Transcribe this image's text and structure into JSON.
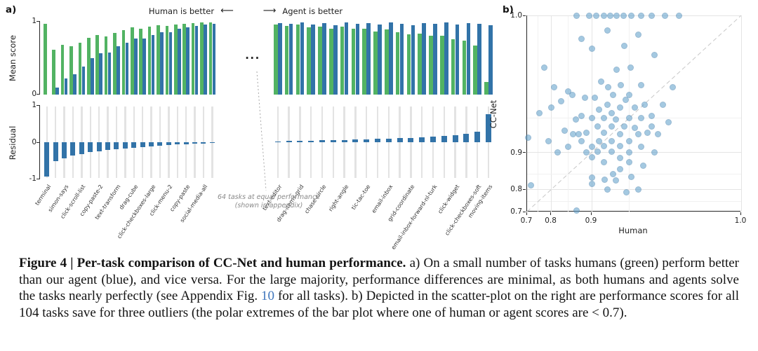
{
  "figure": {
    "panel_a_label": "a)",
    "panel_b_label": "b)",
    "left_arrow": "⟵",
    "right_arrow": "⟶",
    "ellipsis": "..."
  },
  "chart_data": [
    {
      "type": "bar",
      "subtype": "paired-bars-with-residual",
      "direction_left": "Human is better",
      "direction_right": "Agent is better",
      "ylabel_mean": "Mean score",
      "ylabel_residual": "Residual",
      "mean_ticks": [
        "1",
        "0"
      ],
      "residual_ticks": [
        "1",
        "0",
        "-1"
      ],
      "ylim_mean": [
        0,
        1
      ],
      "ylim_residual": [
        -1,
        1
      ],
      "gap_note_line1": "64 tasks at equal performance",
      "gap_note_line2": "(shown in appendix)",
      "colors": {
        "human": "#52b363",
        "agent": "#3273a8",
        "range_line": "#e3e3e3"
      },
      "groups": {
        "left": {
          "name": "human_better",
          "tasks": [
            {
              "label": "terminal",
              "human": 0.97,
              "agent": 0.0,
              "residual": -0.97
            },
            {
              "label": "",
              "human": 0.62,
              "agent": 0.1,
              "residual": -0.52
            },
            {
              "label": "simon-says",
              "human": 0.68,
              "agent": 0.22,
              "residual": -0.46
            },
            {
              "label": "",
              "human": 0.66,
              "agent": 0.28,
              "residual": -0.38
            },
            {
              "label": "click-scroll-list",
              "human": 0.71,
              "agent": 0.38,
              "residual": -0.33
            },
            {
              "label": "",
              "human": 0.78,
              "agent": 0.5,
              "residual": -0.28
            },
            {
              "label": "copy-paste-2",
              "human": 0.82,
              "agent": 0.57,
              "residual": -0.25
            },
            {
              "label": "",
              "human": 0.8,
              "agent": 0.58,
              "residual": -0.22
            },
            {
              "label": "text-transform",
              "human": 0.85,
              "agent": 0.66,
              "residual": -0.19
            },
            {
              "label": "",
              "human": 0.88,
              "agent": 0.71,
              "residual": -0.17
            },
            {
              "label": "drag-cube",
              "human": 0.92,
              "agent": 0.77,
              "residual": -0.15
            },
            {
              "label": "",
              "human": 0.9,
              "agent": 0.77,
              "residual": -0.13
            },
            {
              "label": "click-checkboxes-large",
              "human": 0.93,
              "agent": 0.82,
              "residual": -0.11
            },
            {
              "label": "",
              "human": 0.95,
              "agent": 0.86,
              "residual": -0.09
            },
            {
              "label": "click-menu-2",
              "human": 0.94,
              "agent": 0.86,
              "residual": -0.08
            },
            {
              "label": "",
              "human": 0.96,
              "agent": 0.9,
              "residual": -0.06
            },
            {
              "label": "copy-paste",
              "human": 0.97,
              "agent": 0.92,
              "residual": -0.05
            },
            {
              "label": "",
              "human": 0.98,
              "agent": 0.94,
              "residual": -0.04
            },
            {
              "label": "social-media-all",
              "human": 0.99,
              "agent": 0.96,
              "residual": -0.03
            },
            {
              "label": "",
              "human": 0.99,
              "agent": 0.97,
              "residual": -0.02
            }
          ]
        },
        "right": {
          "name": "agent_better",
          "tasks": [
            {
              "label": "text-editor",
              "human": 0.96,
              "agent": 0.98,
              "residual": 0.02
            },
            {
              "label": "",
              "human": 0.94,
              "agent": 0.97,
              "residual": 0.03
            },
            {
              "label": "drag-items-grid",
              "human": 0.96,
              "agent": 0.99,
              "residual": 0.03
            },
            {
              "label": "",
              "human": 0.92,
              "agent": 0.96,
              "residual": 0.04
            },
            {
              "label": "chase-circle",
              "human": 0.93,
              "agent": 0.98,
              "residual": 0.05
            },
            {
              "label": "",
              "human": 0.9,
              "agent": 0.95,
              "residual": 0.05
            },
            {
              "label": "right-angle",
              "human": 0.93,
              "agent": 0.99,
              "residual": 0.06
            },
            {
              "label": "",
              "human": 0.9,
              "agent": 0.97,
              "residual": 0.07
            },
            {
              "label": "tic-tac-toe",
              "human": 0.9,
              "agent": 0.98,
              "residual": 0.08
            },
            {
              "label": "",
              "human": 0.87,
              "agent": 0.96,
              "residual": 0.09
            },
            {
              "label": "email-inbox",
              "human": 0.89,
              "agent": 0.99,
              "residual": 0.1
            },
            {
              "label": "",
              "human": 0.86,
              "agent": 0.97,
              "residual": 0.11
            },
            {
              "label": "grid-coordinate",
              "human": 0.83,
              "agent": 0.95,
              "residual": 0.12
            },
            {
              "label": "",
              "human": 0.84,
              "agent": 0.98,
              "residual": 0.14
            },
            {
              "label": "email-inbox-forward-nl-turk",
              "human": 0.81,
              "agent": 0.97,
              "residual": 0.16
            },
            {
              "label": "",
              "human": 0.81,
              "agent": 0.99,
              "residual": 0.18
            },
            {
              "label": "click-widget",
              "human": 0.76,
              "agent": 0.96,
              "residual": 0.2
            },
            {
              "label": "",
              "human": 0.74,
              "agent": 0.98,
              "residual": 0.24
            },
            {
              "label": "click-checkboxes-soft",
              "human": 0.67,
              "agent": 0.97,
              "residual": 0.3
            },
            {
              "label": "moving-items",
              "human": 0.17,
              "agent": 0.95,
              "residual": 0.78
            }
          ]
        }
      }
    },
    {
      "type": "scatter",
      "xlabel": "Human",
      "ylabel": "CC-Net",
      "xlim": [
        0.7,
        1.0
      ],
      "ylim": [
        0.7,
        1.0
      ],
      "xticks": [
        "0.7",
        "0.8",
        "0.9",
        "1.0"
      ],
      "yticks": [
        "1.0",
        "0.9",
        "0.8",
        "0.7"
      ],
      "scale_note": "both axes compressed toward 1.0 (log scale on 1-x)",
      "diagonal": true,
      "point_color": "#5b9dc9",
      "diagonal_color": "#c8c8c8",
      "points": [
        [
          0.87,
          1.0
        ],
        [
          0.895,
          1.0
        ],
        [
          0.908,
          1.0
        ],
        [
          0.92,
          1.0
        ],
        [
          0.928,
          1.0
        ],
        [
          0.936,
          1.0
        ],
        [
          0.944,
          1.0
        ],
        [
          0.952,
          1.0
        ],
        [
          0.96,
          1.0
        ],
        [
          0.968,
          1.0
        ],
        [
          0.976,
          1.0
        ],
        [
          0.983,
          1.0
        ],
        [
          0.88,
          0.995
        ],
        [
          0.9,
          0.992
        ],
        [
          0.925,
          0.997
        ],
        [
          0.945,
          0.993
        ],
        [
          0.958,
          0.996
        ],
        [
          0.97,
          0.99
        ],
        [
          0.705,
          0.925
        ],
        [
          0.72,
          0.815
        ],
        [
          0.755,
          0.955
        ],
        [
          0.775,
          0.985
        ],
        [
          0.79,
          0.92
        ],
        [
          0.8,
          0.96
        ],
        [
          0.81,
          0.975
        ],
        [
          0.82,
          0.9
        ],
        [
          0.83,
          0.965
        ],
        [
          0.84,
          0.935
        ],
        [
          0.85,
          0.972
        ],
        [
          0.85,
          0.91
        ],
        [
          0.87,
          0.705
        ],
        [
          0.9,
          0.82
        ],
        [
          0.925,
          0.8
        ],
        [
          0.947,
          0.79
        ],
        [
          0.958,
          0.8
        ],
        [
          0.9,
          0.84
        ],
        [
          0.935,
          0.83
        ],
        [
          0.9,
          0.95
        ],
        [
          0.905,
          0.968
        ],
        [
          0.91,
          0.94
        ],
        [
          0.912,
          0.958
        ],
        [
          0.915,
          0.978
        ],
        [
          0.92,
          0.95
        ],
        [
          0.92,
          0.932
        ],
        [
          0.925,
          0.962
        ],
        [
          0.926,
          0.975
        ],
        [
          0.93,
          0.94
        ],
        [
          0.93,
          0.955
        ],
        [
          0.932,
          0.97
        ],
        [
          0.935,
          0.948
        ],
        [
          0.936,
          0.984
        ],
        [
          0.94,
          0.93
        ],
        [
          0.94,
          0.96
        ],
        [
          0.941,
          0.976
        ],
        [
          0.945,
          0.94
        ],
        [
          0.946,
          0.966
        ],
        [
          0.95,
          0.95
        ],
        [
          0.95,
          0.97
        ],
        [
          0.951,
          0.985
        ],
        [
          0.955,
          0.938
        ],
        [
          0.955,
          0.96
        ],
        [
          0.96,
          0.95
        ],
        [
          0.96,
          0.976
        ],
        [
          0.963,
          0.962
        ],
        [
          0.965,
          0.932
        ],
        [
          0.968,
          0.952
        ],
        [
          0.972,
          0.93
        ],
        [
          0.975,
          0.962
        ],
        [
          0.98,
          0.975
        ],
        [
          0.88,
          0.952
        ],
        [
          0.88,
          0.92
        ],
        [
          0.888,
          0.968
        ],
        [
          0.89,
          0.932
        ],
        [
          0.9,
          0.91
        ],
        [
          0.91,
          0.902
        ],
        [
          0.92,
          0.912
        ],
        [
          0.93,
          0.902
        ],
        [
          0.94,
          0.912
        ],
        [
          0.95,
          0.92
        ],
        [
          0.912,
          0.92
        ],
        [
          0.89,
          0.9
        ],
        [
          0.9,
          0.89
        ],
        [
          0.92,
          0.88
        ],
        [
          0.94,
          0.888
        ],
        [
          0.95,
          0.9
        ],
        [
          0.96,
          0.91
        ],
        [
          0.93,
          0.92
        ],
        [
          0.868,
          0.948
        ],
        [
          0.862,
          0.93
        ],
        [
          0.86,
          0.97
        ],
        [
          0.875,
          0.93
        ],
        [
          0.958,
          0.93
        ],
        [
          0.968,
          0.94
        ],
        [
          0.95,
          0.88
        ],
        [
          0.962,
          0.872
        ],
        [
          0.97,
          0.9
        ],
        [
          0.94,
          0.862
        ],
        [
          0.932,
          0.85
        ],
        [
          0.952,
          0.842
        ],
        [
          0.921,
          0.833
        ],
        [
          0.978,
          0.945
        ]
      ]
    }
  ],
  "caption": {
    "bold": "Figure 4 | Per-task comparison of CC-Net and human performance.",
    "text_1": " a) On a small number of tasks humans (green) perform better than our agent (blue), and vice versa. For the large majority, performance differences are minimal, as both humans and agents solve the tasks nearly perfectly (see Appendix Fig. ",
    "link_text": "10",
    "link_color": "#3f76bc",
    "text_2": " for all tasks). b) Depicted in the scatter-plot on the right are performance scores for all 104 tasks save for three outliers (the polar extremes of the bar plot where one of human or agent scores are < 0.7)."
  }
}
